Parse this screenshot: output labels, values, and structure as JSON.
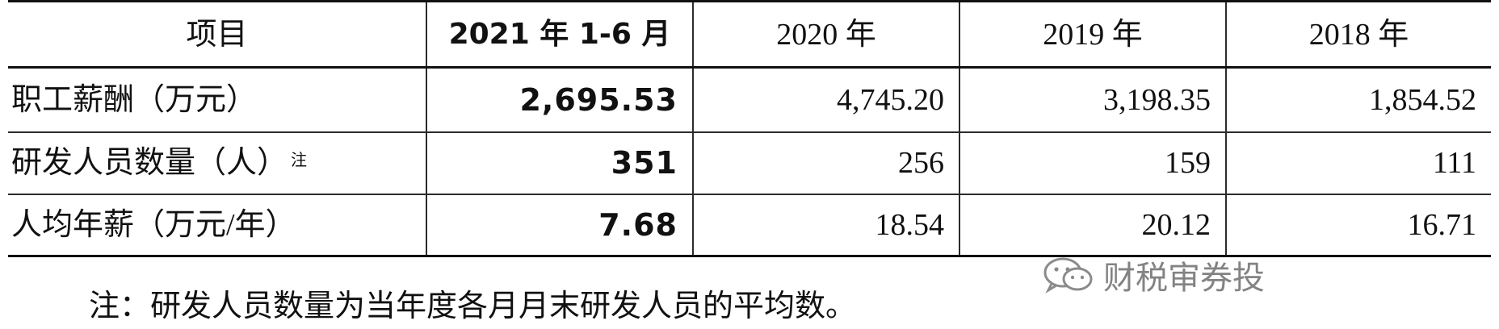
{
  "table": {
    "headers": [
      "项目",
      "2021 年 1-6 月",
      "2020 年",
      "2019 年",
      "2018 年"
    ],
    "rows": [
      {
        "label": "职工薪酬（万元）",
        "note": "",
        "values": [
          "2,695.53",
          "4,745.20",
          "3,198.35",
          "1,854.52"
        ]
      },
      {
        "label": "研发人员数量（人）",
        "note": "注",
        "values": [
          "351",
          "256",
          "159",
          "111"
        ]
      },
      {
        "label": "人均年薪（万元/年）",
        "note": "",
        "values": [
          "7.68",
          "18.54",
          "20.12",
          "16.71"
        ]
      }
    ]
  },
  "footnote": "注：研发人员数量为当年度各月月末研发人员的平均数。",
  "watermark": {
    "text": "财税审券投",
    "icon": "wechat-icon"
  }
}
